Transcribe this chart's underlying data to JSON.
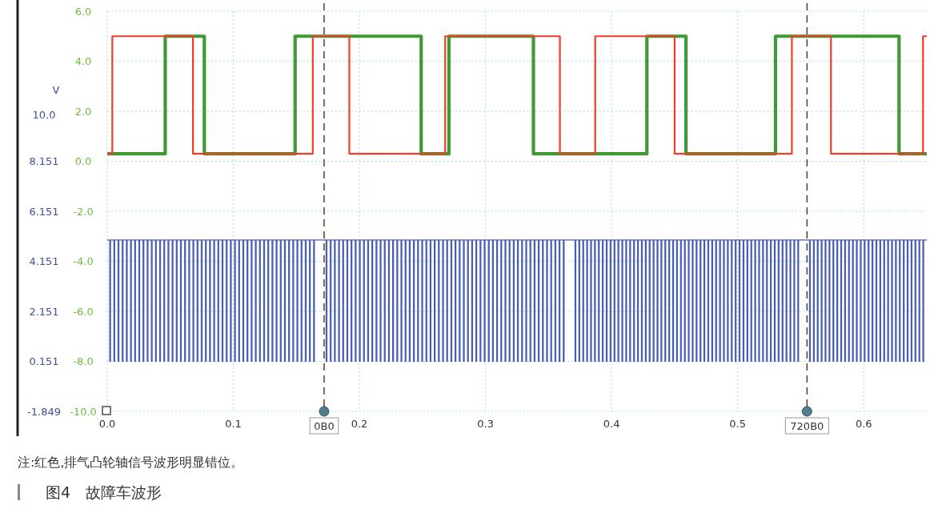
{
  "chart_data": {
    "type": "line",
    "title": "图4　故障车波形",
    "y2label": "V",
    "annotations": [
      "注:红色,排气凸轮轴信号波形明显错位。"
    ],
    "xlim": [
      0,
      0.65
    ],
    "xticks": [
      {
        "value": 0,
        "label": "0.0"
      },
      {
        "value": 0.1,
        "label": "0.1"
      },
      {
        "value": 0.2,
        "label": "0.2"
      },
      {
        "value": 0.3,
        "label": "0.3"
      },
      {
        "value": 0.4,
        "label": "0.4"
      },
      {
        "value": 0.5,
        "label": "0.5"
      },
      {
        "value": 0.6,
        "label": "0.6"
      }
    ],
    "ylim": [
      -10,
      6
    ],
    "yticks": [
      {
        "value": -10,
        "label": "-10.0"
      },
      {
        "value": -8,
        "label": "-8.0"
      },
      {
        "value": -6,
        "label": "-6.0"
      },
      {
        "value": -4,
        "label": "-4.0"
      },
      {
        "value": -2,
        "label": "-2.0"
      },
      {
        "value": 0,
        "label": "0.0"
      },
      {
        "value": 2,
        "label": "2.0"
      },
      {
        "value": 4,
        "label": "4.0"
      },
      {
        "value": 6,
        "label": "6.0"
      }
    ],
    "y2lim": [
      -1.849,
      14.151
    ],
    "y2ticks": [
      -1.849,
      0.151,
      2.151,
      4.151,
      6.151,
      8.151,
      {
        "value": 10.0,
        "label": "10.0"
      }
    ],
    "grid": true,
    "ref_lines": [
      {
        "axis": "x",
        "value": 0.172,
        "label": "0B0",
        "color": "#5a3a2a",
        "line_style": "dashed"
      },
      {
        "axis": "x",
        "value": 0.555,
        "label": "720B0",
        "color": "#5a3a2a",
        "line_style": "dashed"
      }
    ],
    "series": [
      {
        "color": "#3f9a35",
        "x": [
          0,
          0.046,
          0.046,
          0.077,
          0.077,
          0.149,
          0.149,
          0.249,
          0.249,
          0.271,
          0.271,
          0.338,
          0.338,
          0.428,
          0.428,
          0.459,
          0.459,
          0.53,
          0.53,
          0.628,
          0.628,
          0.65
        ],
        "values": [
          0.3,
          0.3,
          5.0,
          5.0,
          0.3,
          0.3,
          5.0,
          5.0,
          0.3,
          0.3,
          5.0,
          5.0,
          0.3,
          0.3,
          5.0,
          5.0,
          0.3,
          0.3,
          5.0,
          5.0,
          0.3,
          0.3
        ]
      },
      {
        "color": "#f23c28",
        "x": [
          0,
          0.004,
          0.004,
          0.068,
          0.068,
          0.163,
          0.163,
          0.192,
          0.192,
          0.268,
          0.268,
          0.359,
          0.359,
          0.387,
          0.387,
          0.45,
          0.45,
          0.543,
          0.543,
          0.574,
          0.574,
          0.647,
          0.647,
          0.65
        ],
        "values": [
          0.3,
          0.3,
          5.0,
          5.0,
          0.3,
          0.3,
          5.0,
          5.0,
          0.3,
          0.3,
          5.0,
          5.0,
          0.3,
          0.3,
          5.0,
          5.0,
          0.3,
          0.3,
          5.0,
          5.0,
          0.3,
          0.3,
          5.0,
          5.0
        ]
      },
      {
        "type": "step",
        "axis": "y2",
        "color": "#4a5db5",
        "x": [
          0,
          0.002,
          0.0026,
          0.0053,
          0.0059,
          0.0086,
          0.0092,
          0.0119,
          0.0125,
          0.0152,
          0.0158,
          0.0185,
          0.0191,
          0.0218,
          0.0224,
          0.0251,
          0.0257,
          0.0284,
          0.029,
          0.0317,
          0.0323,
          0.035,
          0.0356,
          0.0383,
          0.0389,
          0.0416,
          0.0422,
          0.0449,
          0.0455,
          0.0482,
          0.0488,
          0.0515,
          0.0521,
          0.0548,
          0.0554,
          0.0581,
          0.0587,
          0.0614,
          0.062,
          0.0647,
          0.0653,
          0.068,
          0.0686,
          0.0713,
          0.0719,
          0.0746,
          0.0752,
          0.0779,
          0.0785,
          0.0812,
          0.0818,
          0.0845,
          0.0851,
          0.0878,
          0.0884,
          0.0911,
          0.0917,
          0.0944,
          0.095,
          0.0977,
          0.0983,
          0.101,
          0.1016,
          0.1043,
          0.1049,
          0.1076,
          0.1082,
          0.1109,
          0.1115,
          0.1142,
          0.1148,
          0.1175,
          0.1181,
          0.1208,
          0.1214,
          0.1241,
          0.1247,
          0.1274,
          0.128,
          0.1307,
          0.1313,
          0.134,
          0.1346,
          0.1373,
          0.1379,
          0.1406,
          0.1412,
          0.1439,
          0.1445,
          0.1472,
          0.1478,
          0.1505,
          0.1511,
          0.1538,
          0.1544,
          0.1571,
          0.1577,
          0.1604,
          0.161,
          0.1637,
          0.1643,
          0.1736,
          0.1742,
          0.1769,
          0.1775,
          0.1802,
          0.1808,
          0.1835,
          0.1841,
          0.1868,
          0.1874,
          0.1901,
          0.1907,
          0.1934,
          0.194,
          0.1967,
          0.1973,
          0.2,
          0.2006,
          0.2033,
          0.2039,
          0.2066,
          0.2072,
          0.2099,
          0.2105,
          0.2132,
          0.2138,
          0.2165,
          0.2171,
          0.2198,
          0.2204,
          0.2231,
          0.2237,
          0.2264,
          0.227,
          0.2297,
          0.2303,
          0.233,
          0.2336,
          0.2363,
          0.2369,
          0.2396,
          0.2402,
          0.2429,
          0.2435,
          0.2462,
          0.2468,
          0.2495,
          0.2501,
          0.2528,
          0.2534,
          0.2561,
          0.2567,
          0.2594,
          0.26,
          0.2627,
          0.2633,
          0.266,
          0.2666,
          0.2693,
          0.2699,
          0.2726,
          0.2732,
          0.2759,
          0.2765,
          0.2792,
          0.2798,
          0.2825,
          0.2831,
          0.2858,
          0.2864,
          0.2891,
          0.2897,
          0.2924,
          0.293,
          0.2957,
          0.2963,
          0.299,
          0.2996,
          0.3023,
          0.3029,
          0.3056,
          0.3062,
          0.3089,
          0.3095,
          0.3122,
          0.3128,
          0.3155,
          0.3161,
          0.3188,
          0.3194,
          0.3221,
          0.3227,
          0.3254,
          0.326,
          0.3287,
          0.3293,
          0.332,
          0.3326,
          0.3353,
          0.3359,
          0.3386,
          0.3392,
          0.3419,
          0.3425,
          0.3452,
          0.3458,
          0.3485,
          0.3491,
          0.3518,
          0.3524,
          0.3551,
          0.3557,
          0.3584,
          0.359,
          0.3617,
          0.3623,
          0.371,
          0.3716,
          0.3741,
          0.3747,
          0.3772,
          0.3778,
          0.3803,
          0.3809,
          0.3834,
          0.384,
          0.3865,
          0.3871,
          0.3896,
          0.3902,
          0.3927,
          0.3933,
          0.3958,
          0.3964,
          0.3989,
          0.3995,
          0.402,
          0.4026,
          0.4051,
          0.4057,
          0.4082,
          0.4088,
          0.4113,
          0.4119,
          0.4144,
          0.415,
          0.4175,
          0.4181,
          0.4206,
          0.4212,
          0.4237,
          0.4243,
          0.4268,
          0.4274,
          0.4299,
          0.4305,
          0.433,
          0.4336,
          0.4361,
          0.4367,
          0.4392,
          0.4398,
          0.4423,
          0.4429,
          0.4454,
          0.446,
          0.4485,
          0.4491,
          0.4516,
          0.4522,
          0.4547,
          0.4553,
          0.4578,
          0.4584,
          0.4609,
          0.4615,
          0.464,
          0.4646,
          0.4671,
          0.4677,
          0.4702,
          0.4708,
          0.4733,
          0.4739,
          0.4764,
          0.477,
          0.4795,
          0.4801,
          0.4826,
          0.4832,
          0.4857,
          0.4863,
          0.4888,
          0.4894,
          0.4919,
          0.4925,
          0.495,
          0.4956,
          0.4981,
          0.4987,
          0.5012,
          0.5018,
          0.5043,
          0.5049,
          0.5074,
          0.508,
          0.5105,
          0.5111,
          0.5136,
          0.5142,
          0.5167,
          0.5173,
          0.5198,
          0.5204,
          0.5229,
          0.5235,
          0.526,
          0.5266,
          0.5291,
          0.5297,
          0.5322,
          0.5328,
          0.5353,
          0.5359,
          0.5384,
          0.539,
          0.5415,
          0.5421,
          0.5446,
          0.5452,
          0.5477,
          0.5483,
          0.557,
          0.5576,
          0.5601,
          0.5607,
          0.5632,
          0.5638,
          0.5663,
          0.5669,
          0.5694,
          0.57,
          0.5725,
          0.5731,
          0.5756,
          0.5762,
          0.5787,
          0.5793,
          0.5818,
          0.5824,
          0.5849,
          0.5855,
          0.588,
          0.5886,
          0.5911,
          0.5917,
          0.5942,
          0.5948,
          0.5973,
          0.5979,
          0.6004,
          0.601,
          0.6035,
          0.6041,
          0.6066,
          0.6072,
          0.6097,
          0.6103,
          0.6128,
          0.6134,
          0.6159,
          0.6165,
          0.619,
          0.6196,
          0.6221,
          0.6227,
          0.6252,
          0.6258,
          0.6283,
          0.6289,
          0.6314,
          0.632,
          0.6345,
          0.6351,
          0.6376,
          0.6382,
          0.6407,
          0.6413,
          0.6438,
          0.6444,
          0.6469,
          0.6475,
          0.65
        ],
        "values": [
          5.0,
          0.15,
          5,
          0.15,
          5,
          0.15,
          5,
          0.15,
          5,
          0.15,
          5,
          0.15,
          5,
          0.15,
          5,
          0.15,
          5,
          0.15,
          5,
          0.15,
          5,
          0.15,
          5,
          0.15,
          5,
          0.15,
          5,
          0.15,
          5,
          0.15,
          5,
          0.15,
          5,
          0.15,
          5,
          0.15,
          5,
          0.15,
          5,
          0.15,
          5,
          0.15,
          5,
          0.15,
          5,
          0.15,
          5,
          0.15,
          5,
          0.15,
          5,
          0.15,
          5,
          0.15,
          5,
          0.15,
          5,
          0.15,
          5,
          0.15,
          5,
          0.15,
          5,
          0.15,
          5,
          0.15,
          5,
          0.15,
          5,
          0.15,
          5,
          0.15,
          5,
          0.15,
          5,
          0.15,
          5,
          0.15,
          5,
          0.15,
          5,
          0.15,
          5,
          0.15,
          5,
          0.15,
          5,
          0.15,
          5,
          0.15,
          5,
          0.15,
          5,
          0.15,
          5,
          0.15,
          5,
          0.15,
          5,
          0.15,
          5,
          0.15,
          5,
          0.15,
          5,
          0.15,
          5,
          0.15,
          5,
          0.15,
          5,
          0.15,
          5,
          0.15,
          5,
          0.15,
          5,
          0.15,
          5,
          0.15,
          5,
          0.15,
          5,
          0.15,
          5,
          0.15,
          5,
          0.15,
          5,
          0.15,
          5,
          0.15,
          5,
          0.15,
          5,
          0.15,
          5,
          0.15,
          5,
          0.15,
          5,
          0.15,
          5,
          0.15,
          5,
          0.15,
          5,
          0.15,
          5,
          0.15,
          5,
          0.15,
          5,
          0.15,
          5,
          0.15,
          5,
          0.15,
          5,
          0.15,
          5,
          0.15,
          5,
          0.15,
          5,
          0.15,
          5,
          0.15,
          5,
          0.15,
          5,
          0.15,
          5,
          0.15,
          5,
          0.15,
          5,
          0.15,
          5,
          0.15,
          5,
          0.15,
          5,
          0.15,
          5,
          0.15,
          5,
          0.15,
          5,
          0.15,
          5,
          0.15,
          5,
          0.15,
          5,
          0.15,
          5,
          0.15,
          5,
          0.15,
          5,
          0.15,
          5,
          0.15,
          5,
          0.15,
          5,
          0.15,
          5,
          0.15,
          5,
          0.15,
          5,
          0.15,
          5,
          0.15,
          5,
          0.15,
          5,
          0.15,
          5,
          0.15,
          5,
          0.15,
          5,
          0.15,
          5,
          0.15,
          5,
          0.15,
          5,
          0.15,
          5,
          0.15,
          5,
          0.15,
          5,
          0.15,
          5,
          0.15,
          5,
          0.15,
          5,
          0.15,
          5,
          0.15,
          5,
          0.15,
          5,
          0.15,
          5,
          0.15,
          5,
          0.15,
          5,
          0.15,
          5,
          0.15,
          5,
          0.15,
          5,
          0.15,
          5,
          0.15,
          5,
          0.15,
          5,
          0.15,
          5,
          0.15,
          5,
          0.15,
          5,
          0.15,
          5,
          0.15,
          5,
          0.15,
          5,
          0.15,
          5,
          0.15,
          5,
          0.15,
          5,
          0.15,
          5,
          0.15,
          5,
          0.15,
          5,
          0.15,
          5,
          0.15,
          5,
          0.15,
          5,
          0.15,
          5,
          0.15,
          5,
          0.15,
          5,
          0.15,
          5,
          0.15,
          5,
          0.15,
          5,
          0.15,
          5,
          0.15,
          5,
          0.15,
          5,
          0.15,
          5,
          0.15,
          5,
          0.15,
          5,
          0.15,
          5,
          0.15,
          5,
          0.15,
          5,
          0.15,
          5,
          0.15,
          5,
          0.15,
          5,
          0.15,
          5,
          0.15,
          5,
          0.15,
          5,
          0.15,
          5,
          0.15,
          5,
          0.15,
          5,
          0.15,
          5,
          0.15,
          5,
          0.15,
          5,
          0.15,
          5,
          0.15,
          5,
          0.15,
          5,
          0.15,
          5,
          0.15,
          5,
          0.15,
          5,
          0.15,
          5,
          0.15,
          5,
          0.15,
          5,
          0.15,
          5,
          0.15,
          5,
          0.15,
          5,
          0.15,
          5,
          0.15,
          5,
          0.15,
          5,
          0.15,
          5,
          0.15,
          5,
          0.15,
          5,
          0.15,
          5,
          0.15,
          5,
          0.15,
          5,
          5.0
        ]
      }
    ]
  }
}
